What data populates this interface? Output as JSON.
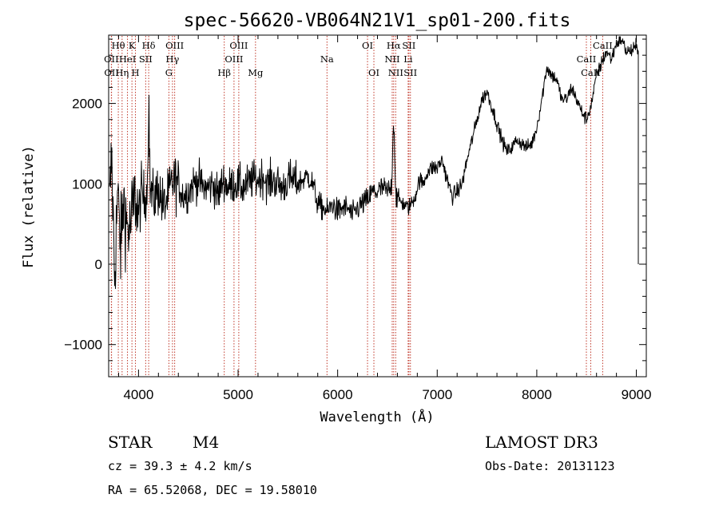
{
  "chart_data": {
    "type": "line",
    "title": "spec-56620-VB064N21V1_sp01-200.fits",
    "xlabel": "Wavelength (Å)",
    "ylabel": "Flux (relative)",
    "xlim": [
      3700,
      9100
    ],
    "ylim": [
      -1400,
      2850
    ],
    "xticks": [
      4000,
      5000,
      6000,
      7000,
      8000,
      9000
    ],
    "yticks": [
      -1000,
      0,
      1000,
      2000
    ],
    "grid": false,
    "spectral_lines": [
      {
        "name": "Hθ",
        "wavelength": 3797,
        "row": 0
      },
      {
        "name": "OII",
        "wavelength": 3727,
        "row": 1
      },
      {
        "name": "OII",
        "wavelength": 3729,
        "row": 2
      },
      {
        "name": "K",
        "wavelength": 3934,
        "row": 0
      },
      {
        "name": "HeI",
        "wavelength": 3889,
        "row": 1
      },
      {
        "name": "Hη",
        "wavelength": 3835,
        "row": 2
      },
      {
        "name": "Hδ",
        "wavelength": 4102,
        "row": 0
      },
      {
        "name": "SII",
        "wavelength": 4072,
        "row": 1
      },
      {
        "name": "H",
        "wavelength": 3969,
        "row": 2
      },
      {
        "name": "OIII",
        "wavelength": 4363,
        "row": 0
      },
      {
        "name": "Hγ",
        "wavelength": 4341,
        "row": 1
      },
      {
        "name": "G",
        "wavelength": 4305,
        "row": 2
      },
      {
        "name": "OIII",
        "wavelength": 5007,
        "row": 0
      },
      {
        "name": "OIII",
        "wavelength": 4959,
        "row": 1
      },
      {
        "name": "Hβ",
        "wavelength": 4861,
        "row": 2
      },
      {
        "name": "Mg",
        "wavelength": 5175,
        "row": 2
      },
      {
        "name": "Na",
        "wavelength": 5893,
        "row": 1
      },
      {
        "name": "OI",
        "wavelength": 6300,
        "row": 0
      },
      {
        "name": "OI",
        "wavelength": 6364,
        "row": 2
      },
      {
        "name": "Hα",
        "wavelength": 6563,
        "row": 0
      },
      {
        "name": "NII",
        "wavelength": 6548,
        "row": 1
      },
      {
        "name": "NII",
        "wavelength": 6583,
        "row": 2
      },
      {
        "name": "SII",
        "wavelength": 6716,
        "row": 0
      },
      {
        "name": "Li",
        "wavelength": 6708,
        "row": 1
      },
      {
        "name": "SII",
        "wavelength": 6731,
        "row": 2
      },
      {
        "name": "CaII",
        "wavelength": 8662,
        "row": 0
      },
      {
        "name": "CaII",
        "wavelength": 8498,
        "row": 1
      },
      {
        "name": "CaII",
        "wavelength": 8542,
        "row": 2
      }
    ],
    "series": [
      {
        "name": "flux",
        "x": [
          3700,
          3730,
          3760,
          3790,
          3820,
          3850,
          3880,
          3910,
          3940,
          3970,
          4000,
          4030,
          4060,
          4090,
          4103,
          4115,
          4150,
          4200,
          4250,
          4300,
          4350,
          4400,
          4450,
          4500,
          4550,
          4600,
          4650,
          4700,
          4750,
          4800,
          4850,
          4900,
          4950,
          5000,
          5050,
          5100,
          5150,
          5200,
          5250,
          5300,
          5350,
          5400,
          5450,
          5500,
          5550,
          5600,
          5650,
          5700,
          5750,
          5800,
          5850,
          5900,
          5950,
          6000,
          6050,
          6100,
          6150,
          6200,
          6250,
          6300,
          6350,
          6400,
          6450,
          6500,
          6540,
          6563,
          6585,
          6620,
          6660,
          6700,
          6740,
          6780,
          6820,
          6860,
          6900,
          6950,
          7000,
          7050,
          7100,
          7150,
          7200,
          7250,
          7300,
          7350,
          7400,
          7450,
          7500,
          7550,
          7600,
          7650,
          7700,
          7750,
          7800,
          7850,
          7900,
          7950,
          8000,
          8050,
          8100,
          8150,
          8200,
          8250,
          8300,
          8350,
          8400,
          8450,
          8500,
          8550,
          8600,
          8650,
          8700,
          8750,
          8800,
          8850,
          8900,
          8950,
          9000
        ],
        "values": [
          450,
          1350,
          -150,
          900,
          200,
          800,
          500,
          400,
          650,
          850,
          600,
          900,
          800,
          1000,
          2200,
          950,
          800,
          950,
          700,
          850,
          1050,
          1000,
          850,
          900,
          1000,
          1050,
          950,
          950,
          1000,
          850,
          1050,
          950,
          1000,
          1000,
          950,
          1000,
          1050,
          1050,
          1100,
          1000,
          1050,
          1000,
          950,
          1050,
          1050,
          1000,
          1050,
          1100,
          1000,
          750,
          700,
          650,
          750,
          650,
          700,
          700,
          600,
          700,
          750,
          800,
          900,
          900,
          950,
          900,
          950,
          1850,
          850,
          800,
          750,
          700,
          750,
          850,
          1050,
          1000,
          1150,
          1200,
          1200,
          1300,
          1050,
          850,
          900,
          1000,
          1300,
          1550,
          1800,
          2050,
          2150,
          1950,
          1750,
          1550,
          1400,
          1450,
          1550,
          1500,
          1450,
          1500,
          1700,
          2050,
          2450,
          2350,
          2300,
          2050,
          2050,
          2200,
          2050,
          1900,
          1800,
          2000,
          2350,
          2500,
          2650,
          2550,
          2750,
          2800,
          2650,
          2650,
          2700
        ]
      }
    ]
  },
  "info": {
    "object_class": "STAR",
    "subclass": "M4",
    "survey": "LAMOST DR3",
    "cz": "cz = 39.3 ± 4.2 km/s",
    "obs_date": "Obs-Date: 20131123",
    "radec": "RA =  65.52068, DEC =  19.58010"
  },
  "colors": {
    "line_marker": "#c0392b",
    "spectrum": "#000000"
  }
}
